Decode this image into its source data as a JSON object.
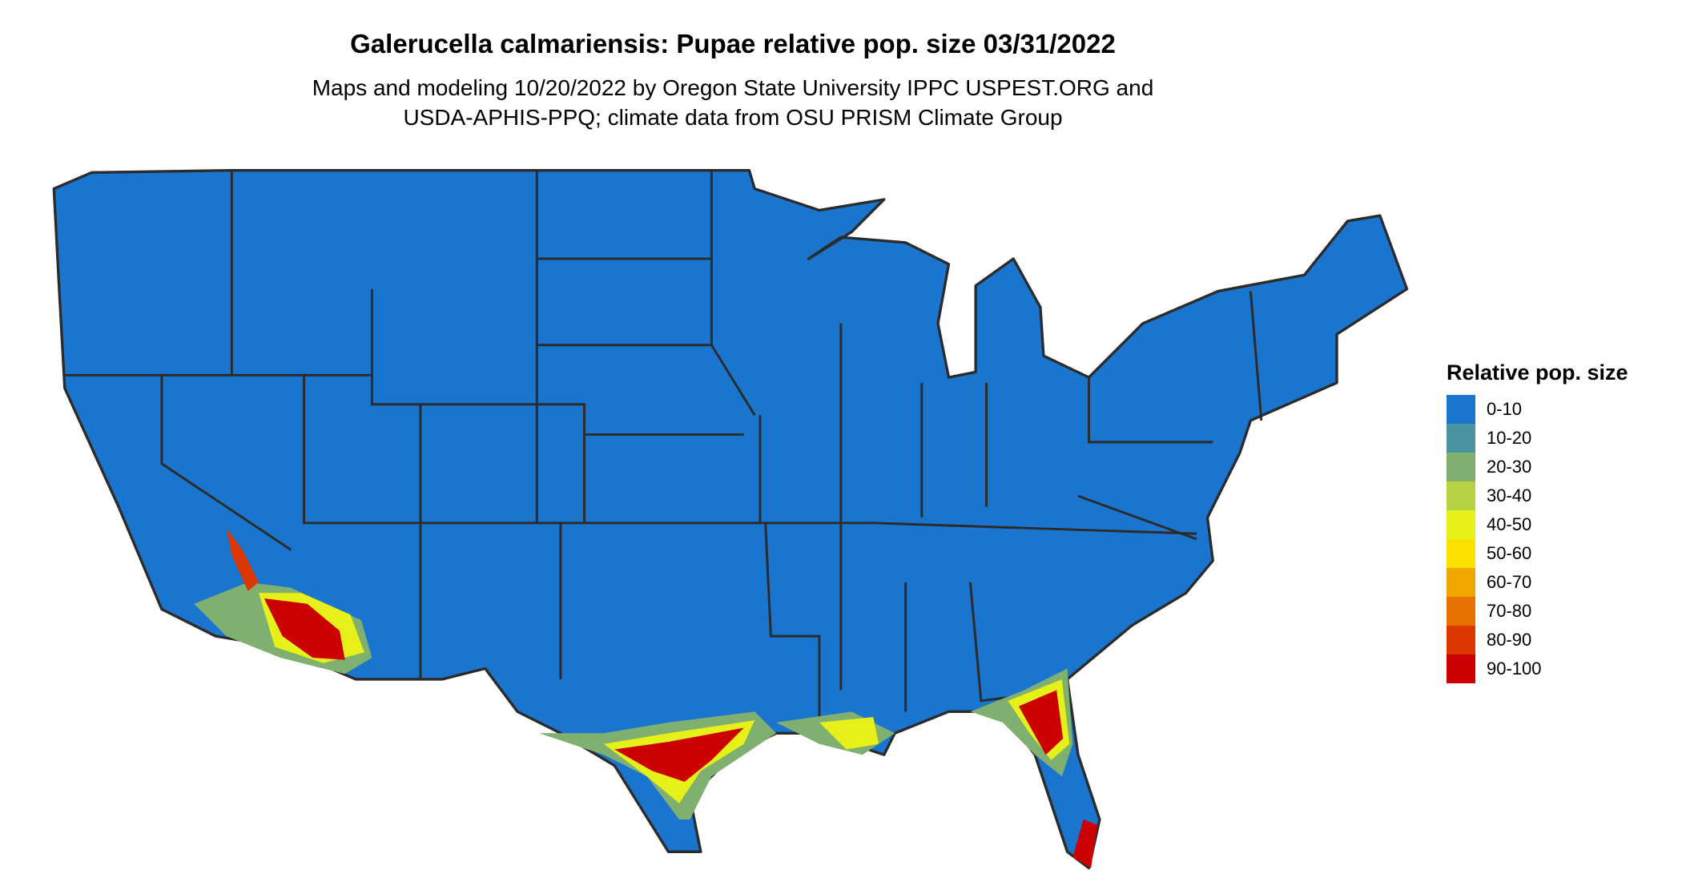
{
  "title": "Galerucella calmariensis: Pupae relative pop. size 03/31/2022",
  "subtitle_lines": [
    "Maps and modeling 10/20/2022 by Oregon State University IPPC USPEST.ORG and",
    "USDA-APHIS-PPQ; climate data from OSU PRISM Climate Group"
  ],
  "legend": {
    "title": "Relative pop. size",
    "items": [
      {
        "label": "0-10",
        "color": "#1a75cf"
      },
      {
        "label": "10-20",
        "color": "#4a93a0"
      },
      {
        "label": "20-30",
        "color": "#7fb070"
      },
      {
        "label": "30-40",
        "color": "#b5d344"
      },
      {
        "label": "40-50",
        "color": "#e6f019"
      },
      {
        "label": "50-60",
        "color": "#fae100"
      },
      {
        "label": "60-70",
        "color": "#f0a800"
      },
      {
        "label": "70-80",
        "color": "#e57200"
      },
      {
        "label": "80-90",
        "color": "#dc3700"
      },
      {
        "label": "90-100",
        "color": "#cc0000"
      }
    ]
  },
  "map": {
    "region": "Contiguous United States",
    "border_color": "#2b2b2b",
    "base_class": "0-10",
    "hot_areas": [
      "Southern California / Arizona",
      "Texas Gulf Coast",
      "Louisiana coast",
      "Florida"
    ]
  }
}
